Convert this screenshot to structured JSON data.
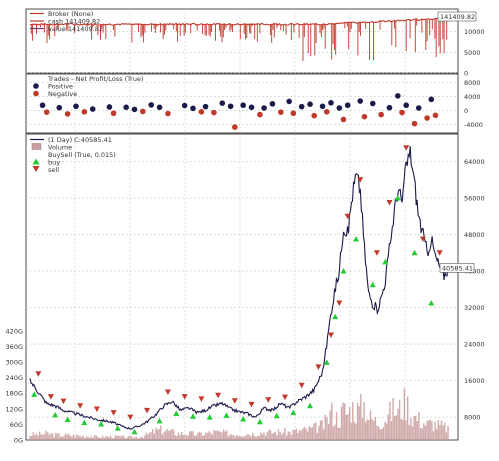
{
  "chart_data": [
    {
      "type": "line",
      "panel": "broker",
      "legend": [
        {
          "label": "Broker (None)",
          "color": "#c0392b",
          "style": "line"
        },
        {
          "label": "cash 141409.82",
          "color": "#c0392b",
          "style": "line"
        },
        {
          "label": "value 141409.82",
          "color": "#4a4a6a",
          "style": "line"
        }
      ],
      "legend_position": "top-left",
      "series": [
        {
          "name": "cash",
          "color": "#c0392b"
        },
        {
          "name": "value",
          "color": "#4a4a6a"
        }
      ],
      "last_value_label": "141409.82",
      "y_ticks": [
        "10000",
        "5000",
        "0"
      ],
      "y_tick_values": [
        10000,
        5000,
        0
      ],
      "ylim": [
        0,
        15500
      ],
      "grid": true
    },
    {
      "type": "scatter",
      "panel": "trades",
      "legend": [
        {
          "label": "Trades - Net Profit/Loss (True)",
          "color": "#333333",
          "style": "none"
        },
        {
          "label": "Positive",
          "color": "#1b1b4b",
          "style": "dot"
        },
        {
          "label": "Negative",
          "color": "#c0392b",
          "style": "dot"
        }
      ],
      "legend_position": "top-left",
      "y_ticks": [
        "8000",
        "4000",
        "0",
        "-4000"
      ],
      "y_tick_values": [
        8000,
        4000,
        0,
        -4000
      ],
      "ylim": [
        -6500,
        10500
      ],
      "positive": [
        {
          "x": 0.03,
          "y": 1500
        },
        {
          "x": 0.07,
          "y": 800
        },
        {
          "x": 0.11,
          "y": 1200
        },
        {
          "x": 0.15,
          "y": 400
        },
        {
          "x": 0.19,
          "y": 1000
        },
        {
          "x": 0.23,
          "y": 900
        },
        {
          "x": 0.25,
          "y": 300
        },
        {
          "x": 0.29,
          "y": 1600
        },
        {
          "x": 0.31,
          "y": 900
        },
        {
          "x": 0.37,
          "y": 1400
        },
        {
          "x": 0.39,
          "y": 600
        },
        {
          "x": 0.42,
          "y": 1100
        },
        {
          "x": 0.46,
          "y": 2100
        },
        {
          "x": 0.48,
          "y": 1200
        },
        {
          "x": 0.51,
          "y": 1500
        },
        {
          "x": 0.53,
          "y": 900
        },
        {
          "x": 0.56,
          "y": 700
        },
        {
          "x": 0.58,
          "y": 1900
        },
        {
          "x": 0.62,
          "y": 2600
        },
        {
          "x": 0.65,
          "y": 1100
        },
        {
          "x": 0.67,
          "y": 1800
        },
        {
          "x": 0.7,
          "y": 1200
        },
        {
          "x": 0.72,
          "y": 2200
        },
        {
          "x": 0.74,
          "y": 700
        },
        {
          "x": 0.76,
          "y": 1500
        },
        {
          "x": 0.79,
          "y": 2700
        },
        {
          "x": 0.82,
          "y": 2000
        },
        {
          "x": 0.86,
          "y": 800
        },
        {
          "x": 0.88,
          "y": 4200
        },
        {
          "x": 0.9,
          "y": 1500
        },
        {
          "x": 0.93,
          "y": 700
        },
        {
          "x": 0.96,
          "y": 3200
        }
      ],
      "negative": [
        {
          "x": 0.04,
          "y": -500
        },
        {
          "x": 0.09,
          "y": -1000
        },
        {
          "x": 0.13,
          "y": -400
        },
        {
          "x": 0.2,
          "y": -800
        },
        {
          "x": 0.27,
          "y": -300
        },
        {
          "x": 0.33,
          "y": -900
        },
        {
          "x": 0.41,
          "y": -400
        },
        {
          "x": 0.44,
          "y": -600
        },
        {
          "x": 0.49,
          "y": -4800
        },
        {
          "x": 0.55,
          "y": -1200
        },
        {
          "x": 0.6,
          "y": -500
        },
        {
          "x": 0.63,
          "y": -800
        },
        {
          "x": 0.68,
          "y": -1500
        },
        {
          "x": 0.71,
          "y": -400
        },
        {
          "x": 0.75,
          "y": -2600
        },
        {
          "x": 0.8,
          "y": -1800
        },
        {
          "x": 0.84,
          "y": -1200
        },
        {
          "x": 0.89,
          "y": -600
        },
        {
          "x": 0.92,
          "y": -3800
        },
        {
          "x": 0.95,
          "y": -2200
        },
        {
          "x": 0.97,
          "y": -1400
        }
      ],
      "grid": true
    },
    {
      "type": "line",
      "panel": "price",
      "legend": [
        {
          "label": "(1 Day) C:40585.41",
          "color": "#1b1b4b",
          "style": "line"
        },
        {
          "label": "Volume",
          "color": "#c8a0a0",
          "style": "bar"
        },
        {
          "label": "BuySell (True, 0.015)",
          "color": "#333333",
          "style": "none"
        },
        {
          "label": "buy",
          "color": "#22cc33",
          "style": "up-triangle"
        },
        {
          "label": "sell",
          "color": "#c0392b",
          "style": "down-triangle"
        }
      ],
      "legend_position": "top-left",
      "last_value_label": "40585.41",
      "y_ticks_right": [
        "64000",
        "56000",
        "48000",
        "40000",
        "32000",
        "24000",
        "16000",
        "8000"
      ],
      "y_ticks_right_values": [
        64000,
        56000,
        48000,
        40000,
        32000,
        24000,
        16000,
        8000
      ],
      "y_ticks_left": [
        "420G",
        "360G",
        "300G",
        "240G",
        "180G",
        "120G",
        "60G",
        "0G"
      ],
      "y_ticks_left_values": [
        420,
        360,
        300,
        240,
        180,
        120,
        60,
        0
      ],
      "ylim": [
        3000,
        70000
      ],
      "volume_ylim": [
        0,
        500
      ],
      "x": [
        0.0,
        0.02,
        0.04,
        0.06,
        0.08,
        0.1,
        0.12,
        0.14,
        0.16,
        0.18,
        0.2,
        0.22,
        0.24,
        0.26,
        0.28,
        0.3,
        0.32,
        0.34,
        0.36,
        0.38,
        0.4,
        0.42,
        0.44,
        0.46,
        0.48,
        0.5,
        0.52,
        0.54,
        0.56,
        0.58,
        0.6,
        0.62,
        0.64,
        0.66,
        0.68,
        0.7,
        0.71,
        0.72,
        0.73,
        0.74,
        0.75,
        0.76,
        0.77,
        0.78,
        0.79,
        0.8,
        0.81,
        0.82,
        0.83,
        0.84,
        0.85,
        0.86,
        0.87,
        0.88,
        0.89,
        0.9,
        0.91,
        0.92,
        0.93,
        0.94,
        0.95,
        0.96,
        0.97,
        0.98,
        0.99,
        1.0
      ],
      "close": [
        16000,
        13500,
        11000,
        10500,
        9500,
        9000,
        8500,
        8000,
        7500,
        7200,
        6800,
        6000,
        5500,
        6000,
        7000,
        8500,
        10500,
        11500,
        9500,
        10000,
        9000,
        9500,
        10500,
        11000,
        9800,
        9200,
        8800,
        8000,
        10000,
        9500,
        11000,
        10000,
        11500,
        12500,
        14000,
        18000,
        24000,
        31000,
        36000,
        40000,
        50000,
        48000,
        56000,
        61000,
        58000,
        45000,
        35000,
        33000,
        31500,
        34000,
        38000,
        45000,
        52000,
        58000,
        55000,
        63000,
        66000,
        59000,
        52000,
        48000,
        44000,
        47000,
        43000,
        41000,
        39000,
        40585
      ],
      "volume": [
        20,
        22,
        25,
        20,
        18,
        18,
        16,
        15,
        12,
        12,
        14,
        12,
        10,
        12,
        20,
        35,
        40,
        30,
        25,
        25,
        22,
        25,
        30,
        28,
        24,
        22,
        25,
        25,
        30,
        28,
        32,
        30,
        35,
        38,
        45,
        55,
        70,
        110,
        90,
        80,
        120,
        100,
        130,
        110,
        120,
        140,
        90,
        80,
        70,
        75,
        85,
        100,
        120,
        110,
        130,
        150,
        100,
        90,
        80,
        70,
        60,
        65,
        60,
        55,
        50,
        45
      ],
      "buy": [
        {
          "x": 0.01,
          "y": 13000
        },
        {
          "x": 0.06,
          "y": 8500
        },
        {
          "x": 0.09,
          "y": 7500
        },
        {
          "x": 0.13,
          "y": 6800
        },
        {
          "x": 0.17,
          "y": 6500
        },
        {
          "x": 0.21,
          "y": 5600
        },
        {
          "x": 0.25,
          "y": 4800
        },
        {
          "x": 0.31,
          "y": 7200
        },
        {
          "x": 0.35,
          "y": 8800
        },
        {
          "x": 0.39,
          "y": 8200
        },
        {
          "x": 0.43,
          "y": 8000
        },
        {
          "x": 0.47,
          "y": 8400
        },
        {
          "x": 0.51,
          "y": 7600
        },
        {
          "x": 0.55,
          "y": 7000
        },
        {
          "x": 0.59,
          "y": 8300
        },
        {
          "x": 0.63,
          "y": 9000
        },
        {
          "x": 0.67,
          "y": 10500
        },
        {
          "x": 0.71,
          "y": 20000
        },
        {
          "x": 0.73,
          "y": 30000
        },
        {
          "x": 0.75,
          "y": 40000
        },
        {
          "x": 0.78,
          "y": 47000
        },
        {
          "x": 0.82,
          "y": 37000
        },
        {
          "x": 0.85,
          "y": 42000
        },
        {
          "x": 0.88,
          "y": 56000
        },
        {
          "x": 0.92,
          "y": 44000
        },
        {
          "x": 0.96,
          "y": 33000
        }
      ],
      "sell": [
        {
          "x": 0.02,
          "y": 17500
        },
        {
          "x": 0.05,
          "y": 12500
        },
        {
          "x": 0.08,
          "y": 11500
        },
        {
          "x": 0.12,
          "y": 10500
        },
        {
          "x": 0.16,
          "y": 9800
        },
        {
          "x": 0.2,
          "y": 9000
        },
        {
          "x": 0.24,
          "y": 8000
        },
        {
          "x": 0.28,
          "y": 9500
        },
        {
          "x": 0.33,
          "y": 13500
        },
        {
          "x": 0.37,
          "y": 12500
        },
        {
          "x": 0.41,
          "y": 12000
        },
        {
          "x": 0.45,
          "y": 12800
        },
        {
          "x": 0.49,
          "y": 11600
        },
        {
          "x": 0.53,
          "y": 10800
        },
        {
          "x": 0.57,
          "y": 11800
        },
        {
          "x": 0.61,
          "y": 12400
        },
        {
          "x": 0.65,
          "y": 15000
        },
        {
          "x": 0.69,
          "y": 19000
        },
        {
          "x": 0.72,
          "y": 26000
        },
        {
          "x": 0.74,
          "y": 33000
        },
        {
          "x": 0.76,
          "y": 52000
        },
        {
          "x": 0.79,
          "y": 60000
        },
        {
          "x": 0.83,
          "y": 44000
        },
        {
          "x": 0.86,
          "y": 55000
        },
        {
          "x": 0.9,
          "y": 67000
        },
        {
          "x": 0.94,
          "y": 47000
        },
        {
          "x": 0.98,
          "y": 44000
        }
      ],
      "grid": true
    }
  ]
}
